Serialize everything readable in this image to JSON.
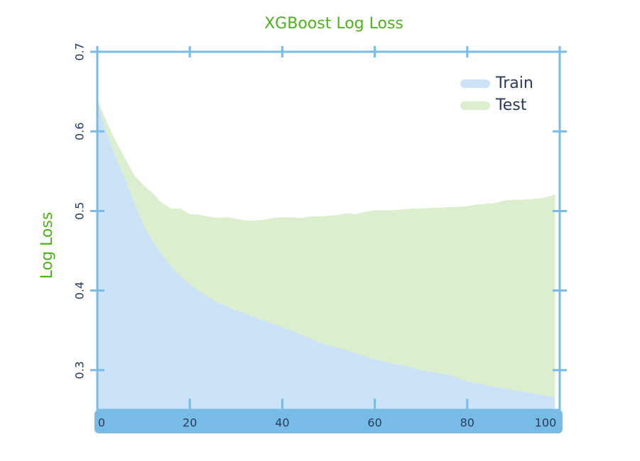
{
  "chart_data": {
    "type": "area",
    "title": "XGBoost Log Loss",
    "y_label": "Log Loss",
    "x": [
      0,
      2,
      4,
      6,
      8,
      10,
      12,
      14,
      16,
      18,
      20,
      22,
      24,
      26,
      28,
      30,
      32,
      34,
      36,
      38,
      40,
      42,
      44,
      46,
      48,
      50,
      52,
      54,
      56,
      58,
      60,
      62,
      64,
      66,
      68,
      70,
      72,
      74,
      76,
      78,
      80,
      82,
      84,
      86,
      88,
      90,
      92,
      94,
      96,
      98,
      99
    ],
    "series": [
      {
        "name": "Train",
        "color": "#cce3f7",
        "values": [
          0.635,
          0.6,
          0.567,
          0.54,
          0.51,
          0.482,
          0.462,
          0.445,
          0.43,
          0.418,
          0.408,
          0.399,
          0.392,
          0.385,
          0.38,
          0.375,
          0.371,
          0.367,
          0.362,
          0.358,
          0.354,
          0.35,
          0.345,
          0.34,
          0.335,
          0.331,
          0.328,
          0.325,
          0.321,
          0.317,
          0.313,
          0.311,
          0.308,
          0.306,
          0.303,
          0.3,
          0.298,
          0.296,
          0.294,
          0.29,
          0.286,
          0.284,
          0.281,
          0.279,
          0.277,
          0.275,
          0.273,
          0.271,
          0.269,
          0.267,
          0.266
        ]
      },
      {
        "name": "Test",
        "color": "#dbefcf",
        "values": [
          0.64,
          0.612,
          0.588,
          0.566,
          0.545,
          0.532,
          0.522,
          0.51,
          0.503,
          0.503,
          0.496,
          0.495,
          0.493,
          0.491,
          0.492,
          0.49,
          0.488,
          0.488,
          0.489,
          0.491,
          0.492,
          0.492,
          0.491,
          0.493,
          0.493,
          0.494,
          0.495,
          0.497,
          0.496,
          0.499,
          0.501,
          0.501,
          0.501,
          0.502,
          0.503,
          0.503,
          0.504,
          0.504,
          0.505,
          0.505,
          0.506,
          0.508,
          0.509,
          0.51,
          0.513,
          0.514,
          0.514,
          0.515,
          0.516,
          0.519,
          0.521
        ]
      }
    ],
    "xlim": [
      0,
      100
    ],
    "xticks": [
      0,
      20,
      40,
      60,
      80,
      100
    ],
    "ylim": [
      0.25,
      0.7
    ],
    "yticks": [
      0.3,
      0.4,
      0.5,
      0.6,
      0.7
    ],
    "legend": "upper right",
    "axis_color": "#77bbe6",
    "title_color": "#4db31b"
  }
}
